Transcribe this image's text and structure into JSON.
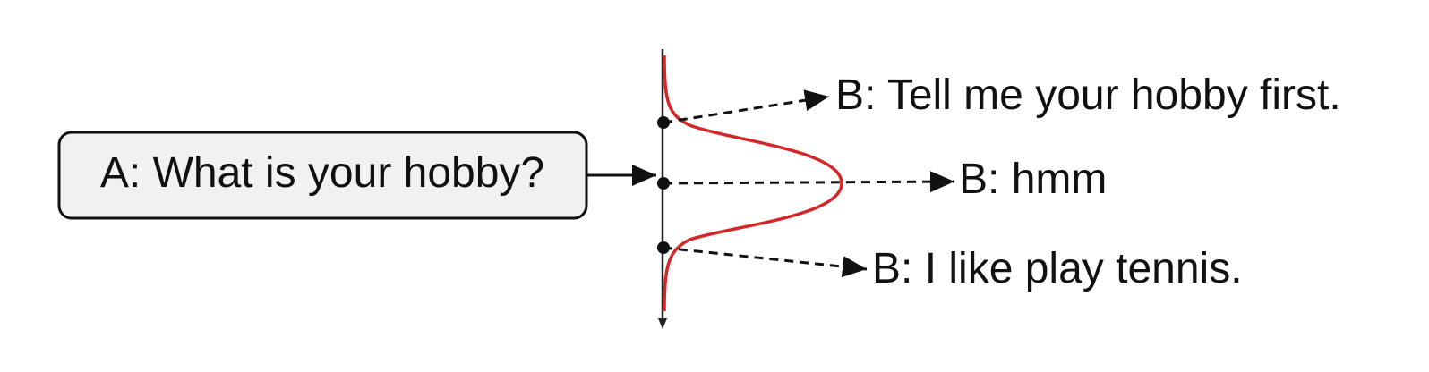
{
  "prompt": {
    "text": "A: What is your hobby?"
  },
  "responses": [
    {
      "text": "B: Tell me your hobby first."
    },
    {
      "text": "B: hmm"
    },
    {
      "text": "B: I like play tennis."
    }
  ],
  "colors": {
    "curve": "#d62728",
    "ink": "#111111",
    "box_fill": "#f1f1f1",
    "background": "#ffffff"
  }
}
